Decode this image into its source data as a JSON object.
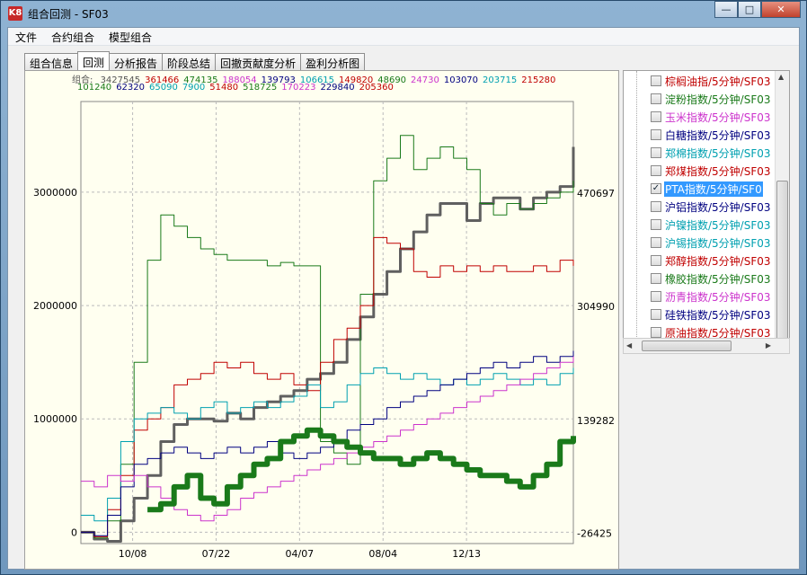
{
  "window": {
    "title": "组合回测 - SF03",
    "app_icon": "K8",
    "min_label": "—",
    "max_label": "□",
    "close_label": "✕"
  },
  "menu": [
    "文件",
    "合约组合",
    "模型组合"
  ],
  "tabs": [
    {
      "label": "组合信息",
      "active": false
    },
    {
      "label": "回测",
      "active": true
    },
    {
      "label": "分析报告",
      "active": false
    },
    {
      "label": "阶段总结",
      "active": false
    },
    {
      "label": "回撤贡献度分析",
      "active": false
    },
    {
      "label": "盈利分析图",
      "active": false
    }
  ],
  "legend": {
    "prefix": "组合:",
    "row1": [
      {
        "text": "3427545",
        "color": "#555555"
      },
      {
        "text": "361466",
        "color": "#c00000"
      },
      {
        "text": "474135",
        "color": "#1a7a1a"
      },
      {
        "text": "188054",
        "color": "#cc33cc"
      },
      {
        "text": "139793",
        "color": "#000080"
      },
      {
        "text": "106615",
        "color": "#00a0b0"
      },
      {
        "text": "149820",
        "color": "#c00000"
      },
      {
        "text": "48690",
        "color": "#1a7a1a"
      },
      {
        "text": "24730",
        "color": "#cc33cc"
      },
      {
        "text": "103070",
        "color": "#000080"
      },
      {
        "text": "203715",
        "color": "#00a0b0"
      },
      {
        "text": "215280",
        "color": "#c00000"
      }
    ],
    "row2": [
      {
        "text": "101240",
        "color": "#1a7a1a"
      },
      {
        "text": "62320",
        "color": "#000080"
      },
      {
        "text": "65090",
        "color": "#00a0b0"
      },
      {
        "text": "7900",
        "color": "#00a0b0"
      },
      {
        "text": "51480",
        "color": "#c00000"
      },
      {
        "text": "518725",
        "color": "#1a7a1a"
      },
      {
        "text": "170223",
        "color": "#cc33cc"
      },
      {
        "text": "229840",
        "color": "#000080"
      },
      {
        "text": "205360",
        "color": "#c00000"
      }
    ]
  },
  "chart_data": {
    "type": "line",
    "x_ticks": [
      "10/08",
      "07/22",
      "04/07",
      "08/04",
      "12/13"
    ],
    "y_left_ticks": [
      "3000000",
      "2000000",
      "1000000",
      "0"
    ],
    "y_left_values": [
      3000000,
      2000000,
      1000000,
      0
    ],
    "y_right_ticks": [
      "470697",
      "304990",
      "139282",
      "-26425"
    ],
    "y_right_values": [
      470697,
      304990,
      139282,
      -26425
    ],
    "ylim_left": [
      -100000,
      3800000
    ],
    "grid": true,
    "series": [
      {
        "color": "#606060",
        "width": 3,
        "values": [
          0,
          -60000,
          -80000,
          100000,
          300000,
          500000,
          800000,
          950000,
          1000000,
          1000000,
          980000,
          1050000,
          1000000,
          1100000,
          1150000,
          1200000,
          1250000,
          1350000,
          1400000,
          1500000,
          1700000,
          1900000,
          2100000,
          2300000,
          2500000,
          2650000,
          2800000,
          2900000,
          2900000,
          2750000,
          2900000,
          2950000,
          2950000,
          2850000,
          2950000,
          3000000,
          3050000,
          3400000
        ]
      },
      {
        "color": "#1a7a1a",
        "width": 1,
        "values": [
          0,
          -50000,
          100000,
          600000,
          1500000,
          2400000,
          2800000,
          2700000,
          2600000,
          2500000,
          2450000,
          2400000,
          2400000,
          2400000,
          2350000,
          2380000,
          2350000,
          2350000,
          800000,
          700000,
          600000,
          2100000,
          3100000,
          3300000,
          3500000,
          3200000,
          3300000,
          3400000,
          3300000,
          3200000,
          2900000,
          2800000,
          2900000,
          2850000,
          2900000,
          2950000,
          3000000,
          3100000
        ]
      },
      {
        "color": "#c00000",
        "width": 1,
        "values": [
          0,
          -40000,
          200000,
          500000,
          900000,
          1000000,
          1100000,
          1300000,
          1350000,
          1400000,
          1500000,
          1450000,
          1500000,
          1400000,
          1350000,
          1400000,
          1300000,
          1250000,
          1500000,
          1700000,
          1800000,
          2000000,
          2600000,
          2550000,
          2500000,
          2300000,
          2250000,
          2350000,
          2300000,
          2350000,
          2300000,
          2350000,
          2300000,
          2300000,
          2350000,
          2300000,
          2400000,
          2350000
        ]
      },
      {
        "color": "#00a0b0",
        "width": 1,
        "values": [
          150000,
          100000,
          300000,
          800000,
          1000000,
          1050000,
          1100000,
          1050000,
          1000000,
          1100000,
          1150000,
          1050000,
          1100000,
          1150000,
          1100000,
          1150000,
          1200000,
          1300000,
          1100000,
          1150000,
          1300000,
          1400000,
          1450000,
          1400000,
          1350000,
          1400000,
          1350000,
          1300000,
          1350000,
          1300000,
          1350000,
          1400000,
          1350000,
          1300000,
          1350000,
          1300000,
          1400000,
          1450000
        ]
      },
      {
        "color": "#000080",
        "width": 1,
        "values": [
          0,
          -30000,
          150000,
          400000,
          600000,
          650000,
          700000,
          750000,
          700000,
          650000,
          700000,
          750000,
          700000,
          750000,
          800000,
          700000,
          650000,
          700000,
          750000,
          800000,
          900000,
          950000,
          1000000,
          1100000,
          1150000,
          1200000,
          1250000,
          1300000,
          1350000,
          1400000,
          1450000,
          1500000,
          1450000,
          1500000,
          1550000,
          1500000,
          1550000,
          1600000
        ]
      },
      {
        "color": "#cc33cc",
        "width": 1,
        "values": [
          450000,
          400000,
          500000,
          450000,
          500000,
          400000,
          300000,
          200000,
          150000,
          100000,
          150000,
          200000,
          300000,
          350000,
          400000,
          450000,
          500000,
          550000,
          600000,
          650000,
          700000,
          750000,
          800000,
          850000,
          900000,
          950000,
          1000000,
          1050000,
          1100000,
          1150000,
          1200000,
          1250000,
          1300000,
          1350000,
          1400000,
          1450000,
          1500000,
          1550000
        ]
      },
      {
        "color": "#1a7a1a",
        "width": 6,
        "values": [
          null,
          null,
          null,
          null,
          null,
          200000,
          250000,
          400000,
          500000,
          300000,
          250000,
          400000,
          500000,
          600000,
          650000,
          800000,
          850000,
          900000,
          850000,
          800000,
          750000,
          700000,
          650000,
          650000,
          600000,
          650000,
          700000,
          650000,
          600000,
          550000,
          500000,
          500000,
          450000,
          400000,
          500000,
          600000,
          800000,
          850000
        ]
      }
    ]
  },
  "tree": [
    {
      "label": "棕榈油指/5分钟/SF03",
      "color": "#c00000",
      "checked": false
    },
    {
      "label": "淀粉指数/5分钟/SF03",
      "color": "#1a7a1a",
      "checked": false
    },
    {
      "label": "玉米指数/5分钟/SF03",
      "color": "#cc33cc",
      "checked": false
    },
    {
      "label": "白糖指数/5分钟/SF03",
      "color": "#000080",
      "checked": false
    },
    {
      "label": "郑棉指数/5分钟/SF03",
      "color": "#00a0b0",
      "checked": false
    },
    {
      "label": "郑煤指数/5分钟/SF03",
      "color": "#c00000",
      "checked": false
    },
    {
      "label": "PTA指数/5分钟/SF0",
      "color": "#1a7a1a",
      "checked": true,
      "selected": true
    },
    {
      "label": "沪铝指数/5分钟/SF03",
      "color": "#000080",
      "checked": false
    },
    {
      "label": "沪镍指数/5分钟/SF03",
      "color": "#00a0b0",
      "checked": false
    },
    {
      "label": "沪锡指数/5分钟/SF03",
      "color": "#00a0b0",
      "checked": false
    },
    {
      "label": "郑醇指数/5分钟/SF03",
      "color": "#c00000",
      "checked": false
    },
    {
      "label": "橡胶指数/5分钟/SF03",
      "color": "#1a7a1a",
      "checked": false
    },
    {
      "label": "沥青指数/5分钟/SF03",
      "color": "#cc33cc",
      "checked": false
    },
    {
      "label": "硅铁指数/5分钟/SF03",
      "color": "#000080",
      "checked": false
    },
    {
      "label": "原油指数/5分钟/SF03",
      "color": "#c00000",
      "checked": false
    }
  ]
}
